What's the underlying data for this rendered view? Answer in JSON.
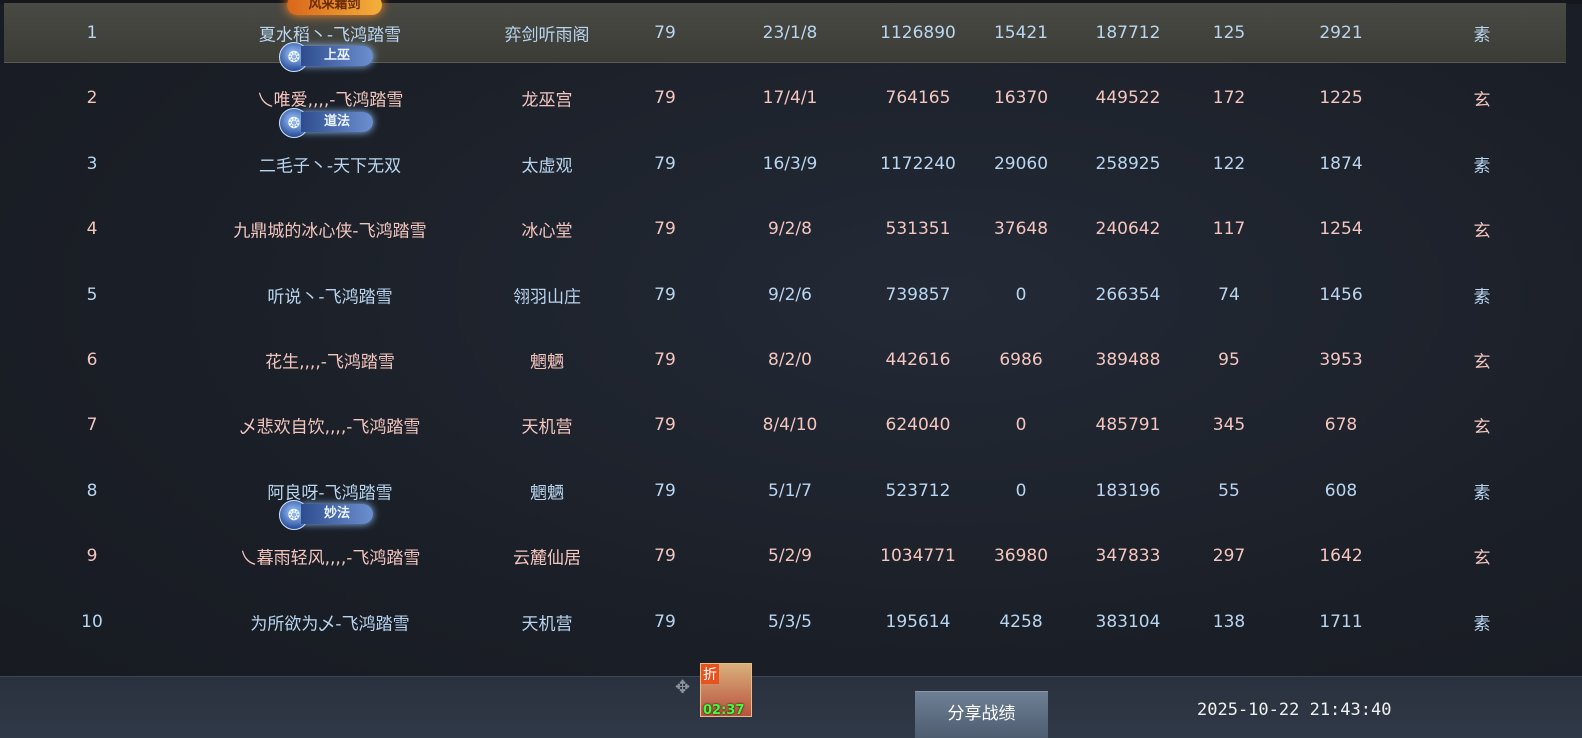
{
  "rows": [
    {
      "rank": "1",
      "name": "夏水稻丶-飞鸿踏雪",
      "sect": "弈剑听雨阁",
      "level": "79",
      "kda": "23/1/8",
      "damage": "1126890",
      "heal": "15421",
      "taken": "187712",
      "c8": "125",
      "c9": "2921",
      "type": "素",
      "color": "blue",
      "badge": "风来霜剑",
      "badge_style": "fire"
    },
    {
      "rank": "2",
      "name": "乀唯爱,,,,-飞鸿踏雪",
      "sect": "龙巫宫",
      "level": "79",
      "kda": "17/4/1",
      "damage": "764165",
      "heal": "16370",
      "taken": "449522",
      "c8": "172",
      "c9": "1225",
      "type": "玄",
      "color": "pink",
      "badge": "上巫",
      "badge_style": "ice"
    },
    {
      "rank": "3",
      "name": "二毛子丶-天下无双",
      "sect": "太虚观",
      "level": "79",
      "kda": "16/3/9",
      "damage": "1172240",
      "heal": "29060",
      "taken": "258925",
      "c8": "122",
      "c9": "1874",
      "type": "素",
      "color": "blue",
      "badge": "道法",
      "badge_style": "ice"
    },
    {
      "rank": "4",
      "name": "九鼎城的冰心侠-飞鸿踏雪",
      "sect": "冰心堂",
      "level": "79",
      "kda": "9/2/8",
      "damage": "531351",
      "heal": "37648",
      "taken": "240642",
      "c8": "117",
      "c9": "1254",
      "type": "玄",
      "color": "pink"
    },
    {
      "rank": "5",
      "name": "听说丶-飞鸿踏雪",
      "sect": "翎羽山庄",
      "level": "79",
      "kda": "9/2/6",
      "damage": "739857",
      "heal": "0",
      "taken": "266354",
      "c8": "74",
      "c9": "1456",
      "type": "素",
      "color": "blue"
    },
    {
      "rank": "6",
      "name": "花生,,,,-飞鸿踏雪",
      "sect": "魍魉",
      "level": "79",
      "kda": "8/2/0",
      "damage": "442616",
      "heal": "6986",
      "taken": "389488",
      "c8": "95",
      "c9": "3953",
      "type": "玄",
      "color": "pink"
    },
    {
      "rank": "7",
      "name": "乄悲欢自饮,,,,-飞鸿踏雪",
      "sect": "天机营",
      "level": "79",
      "kda": "8/4/10",
      "damage": "624040",
      "heal": "0",
      "taken": "485791",
      "c8": "345",
      "c9": "678",
      "type": "玄",
      "color": "pink"
    },
    {
      "rank": "8",
      "name": "阿良呀-飞鸿踏雪",
      "sect": "魍魉",
      "level": "79",
      "kda": "5/1/7",
      "damage": "523712",
      "heal": "0",
      "taken": "183196",
      "c8": "55",
      "c9": "608",
      "type": "素",
      "color": "blue"
    },
    {
      "rank": "9",
      "name": "乀暮雨轻风,,,,-飞鸿踏雪",
      "sect": "云麓仙居",
      "level": "79",
      "kda": "5/2/9",
      "damage": "1034771",
      "heal": "36980",
      "taken": "347833",
      "c8": "297",
      "c9": "1642",
      "type": "玄",
      "color": "pink",
      "badge": "妙法",
      "badge_style": "ice"
    },
    {
      "rank": "10",
      "name": "为所欲为乄-飞鸿踏雪",
      "sect": "天机营",
      "level": "79",
      "kda": "5/3/5",
      "damage": "195614",
      "heal": "4258",
      "taken": "383104",
      "c8": "138",
      "c9": "1711",
      "type": "素",
      "color": "blue"
    }
  ],
  "footer": {
    "item_discount": "折",
    "item_timer": "02:37",
    "share_button": "分享战绩",
    "timestamp": "2025-10-22 21:43:40"
  },
  "colors": {
    "blue": "#b9d5f0",
    "pink": "#f4c6be",
    "highlight": "#46463f"
  }
}
